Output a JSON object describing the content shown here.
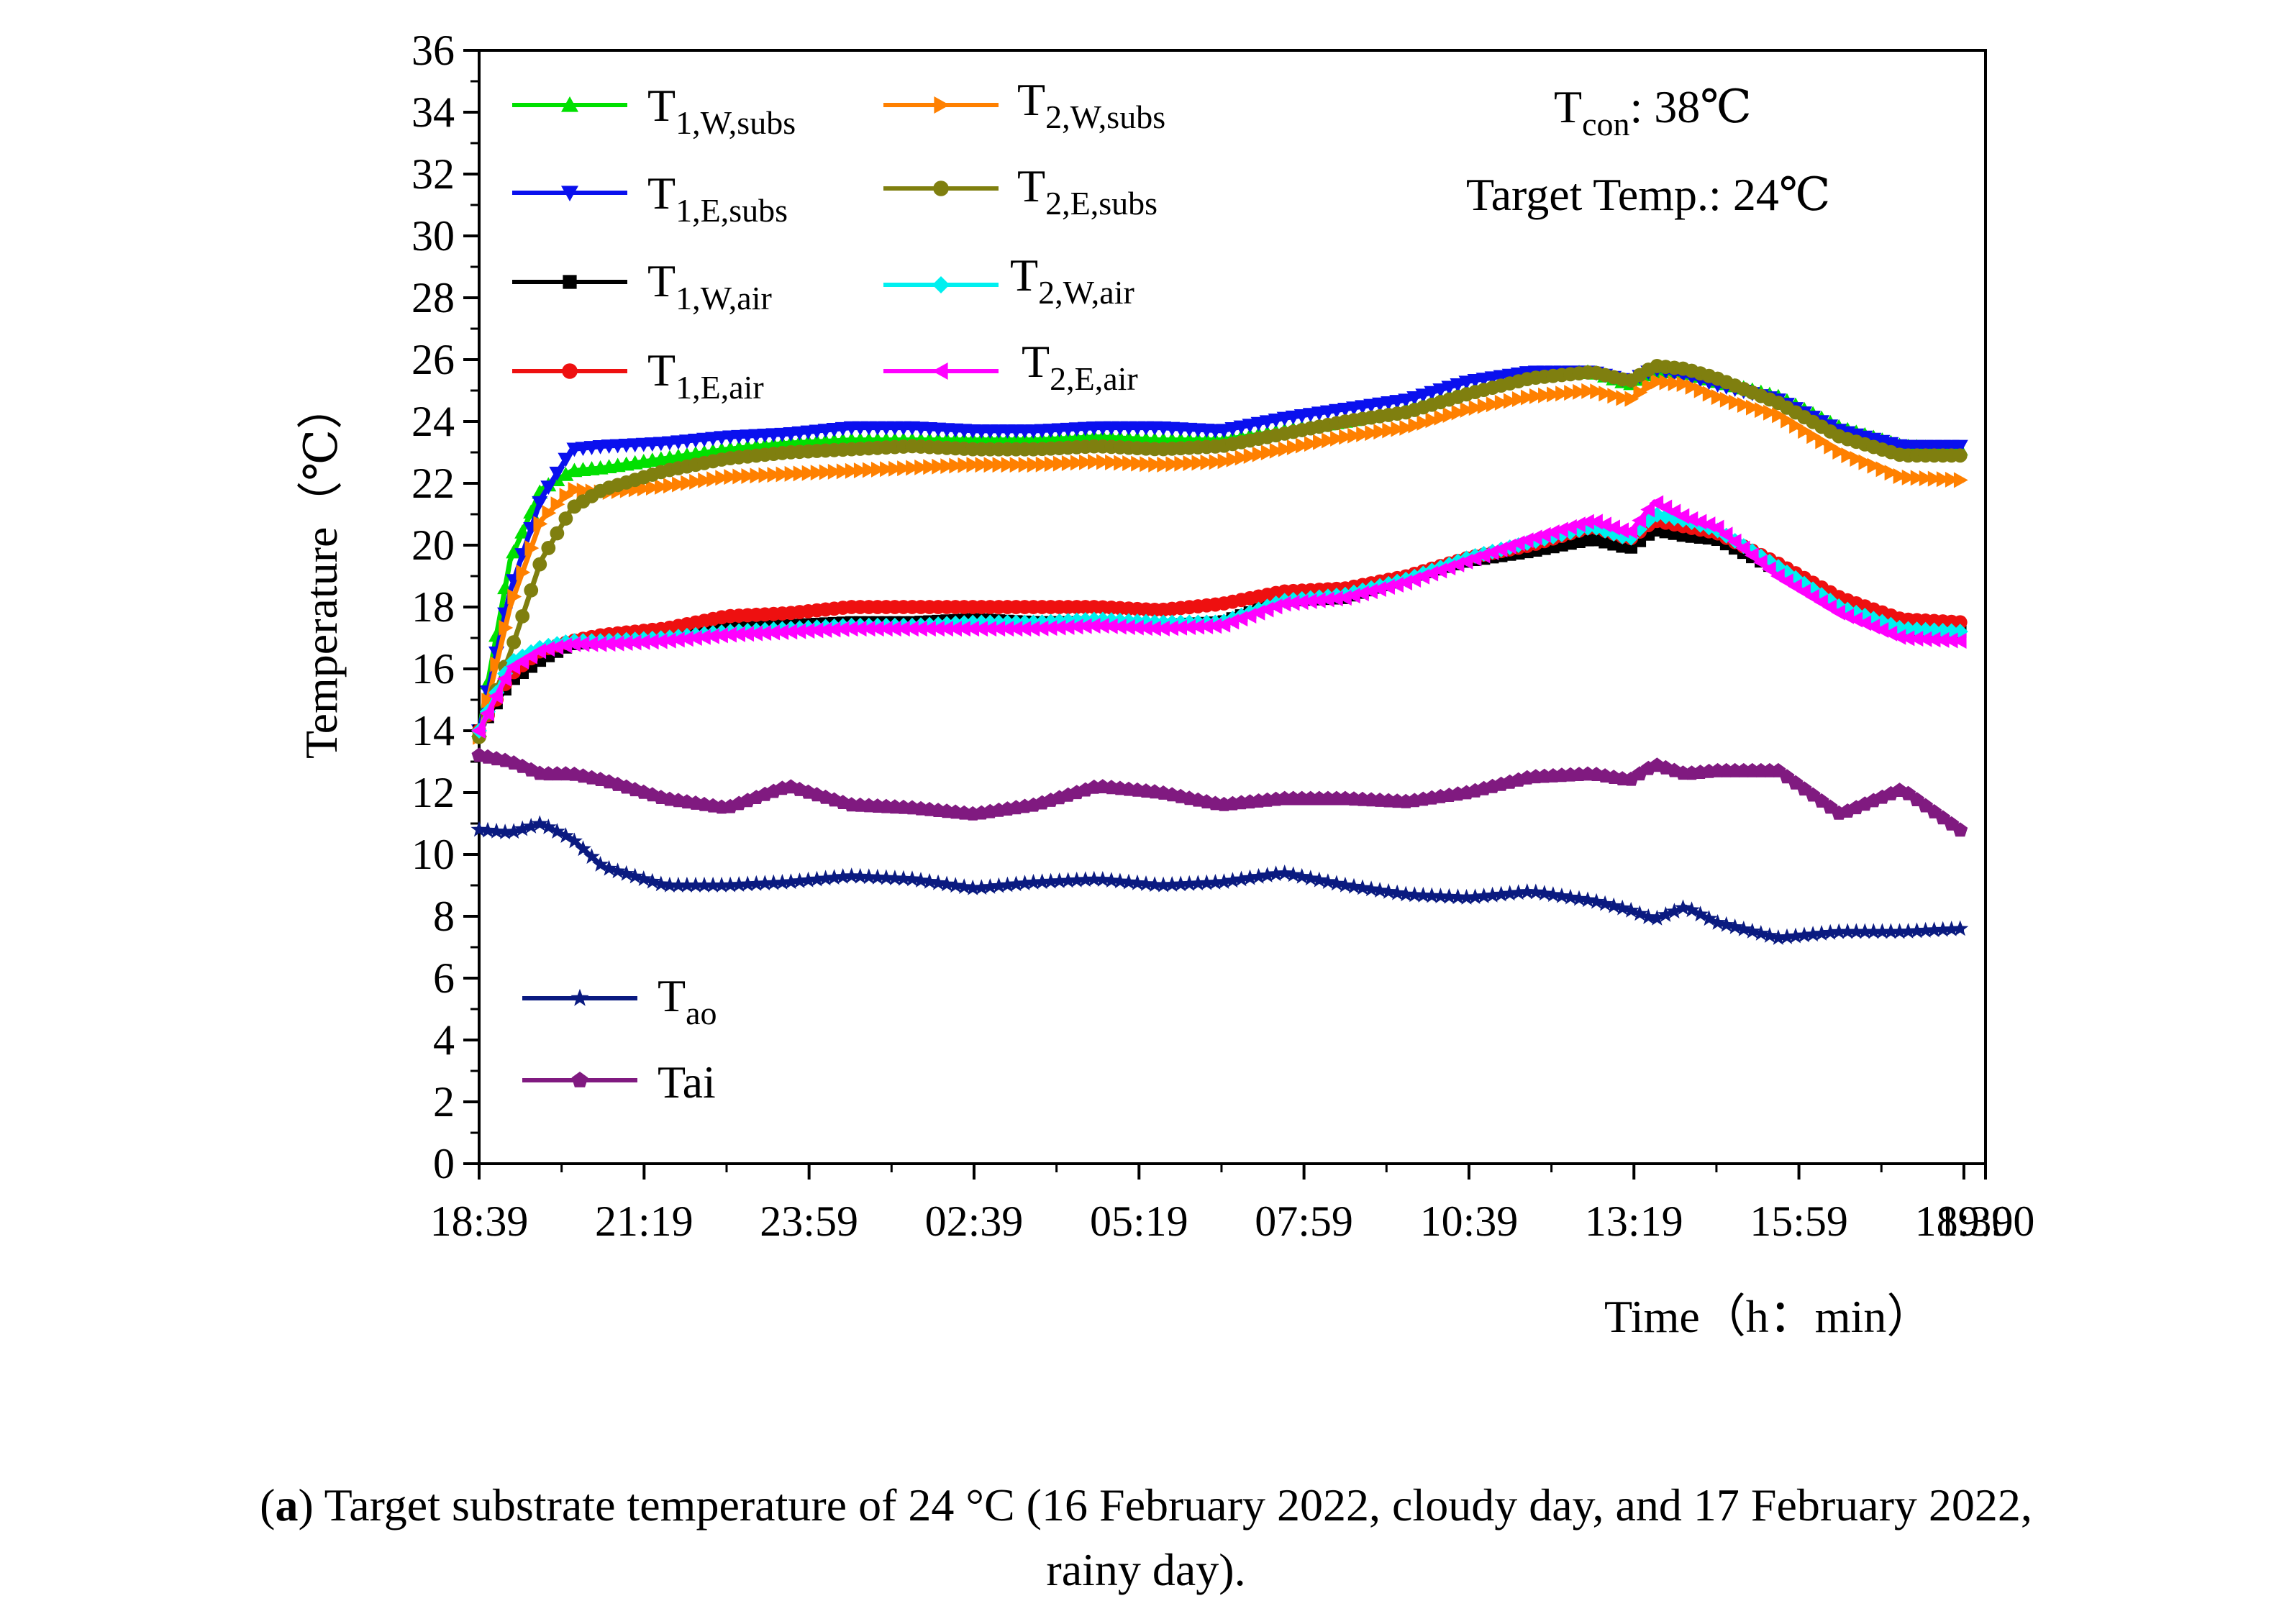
{
  "chart_data": {
    "type": "line",
    "title": "",
    "xlabel": "Time（h：min）",
    "ylabel": "Temperature（℃）",
    "ylim": [
      0,
      36
    ],
    "yticks": [
      0,
      2,
      4,
      6,
      8,
      10,
      12,
      14,
      16,
      18,
      20,
      22,
      24,
      26,
      28,
      30,
      32,
      34,
      36
    ],
    "xlim_hours": [
      0,
      24.35
    ],
    "xticks": [
      {
        "h": 0,
        "label": "18:39"
      },
      {
        "h": 2.6667,
        "label": "21:19"
      },
      {
        "h": 5.3333,
        "label": "23:59"
      },
      {
        "h": 8.0,
        "label": "02:39"
      },
      {
        "h": 10.6667,
        "label": "05:19"
      },
      {
        "h": 13.3333,
        "label": "07:59"
      },
      {
        "h": 16.0,
        "label": "10:39"
      },
      {
        "h": 18.6667,
        "label": "13:19"
      },
      {
        "h": 21.3333,
        "label": "15:59"
      },
      {
        "h": 24.0,
        "label": "18:39"
      },
      {
        "h": 24.35,
        "label": "19:00"
      }
    ],
    "annotations": [
      {
        "main": "T",
        "sub": "con",
        "rest": ": 38℃"
      },
      {
        "main": "Target Temp.: 24℃",
        "sub": "",
        "rest": ""
      }
    ],
    "x_hours": [
      0,
      0.5,
      1,
      1.5,
      2,
      3,
      4,
      5,
      6,
      7,
      8,
      9,
      10,
      11,
      12,
      13,
      14,
      15,
      16,
      17,
      18,
      18.6,
      19,
      19.5,
      20,
      21,
      22,
      23,
      24
    ],
    "series": [
      {
        "name_main": "T",
        "name_sub": "1,W,subs",
        "color": "#00e000",
        "marker": "triangle-up",
        "values": [
          14.0,
          19.5,
          21.8,
          22.4,
          22.5,
          22.8,
          23.1,
          23.3,
          23.4,
          23.4,
          23.4,
          23.4,
          23.5,
          23.4,
          23.4,
          23.7,
          24.0,
          24.4,
          25.0,
          25.5,
          25.6,
          25.2,
          25.6,
          25.6,
          25.3,
          24.8,
          23.8,
          23.2,
          23.1
        ]
      },
      {
        "name_main": "T",
        "name_sub": "1,E,subs",
        "color": "#0a10ee",
        "marker": "triangle-down",
        "values": [
          14.0,
          18.5,
          21.5,
          23.1,
          23.2,
          23.3,
          23.5,
          23.6,
          23.8,
          23.8,
          23.7,
          23.7,
          23.8,
          23.8,
          23.7,
          24.1,
          24.4,
          24.7,
          25.3,
          25.6,
          25.6,
          25.3,
          25.7,
          25.5,
          25.2,
          24.7,
          23.7,
          23.2,
          23.2
        ]
      },
      {
        "name_main": "T",
        "name_sub": "1,W,air",
        "color": "#000000",
        "marker": "square",
        "values": [
          14.0,
          15.6,
          16.3,
          16.8,
          16.9,
          17.0,
          17.3,
          17.4,
          17.5,
          17.5,
          17.6,
          17.5,
          17.5,
          17.4,
          17.5,
          18.2,
          18.3,
          18.9,
          19.5,
          19.8,
          20.2,
          19.9,
          20.5,
          20.3,
          20.2,
          19.2,
          18.2,
          17.3,
          17.2
        ]
      },
      {
        "name_main": "T",
        "name_sub": "1,E,air",
        "color": "#ee1010",
        "marker": "circle",
        "values": [
          14.0,
          15.8,
          16.6,
          16.9,
          17.1,
          17.3,
          17.7,
          17.8,
          18.0,
          18.0,
          18.0,
          18.0,
          18.0,
          17.9,
          18.1,
          18.5,
          18.6,
          19.0,
          19.6,
          20.0,
          20.6,
          20.2,
          20.8,
          20.6,
          20.4,
          19.4,
          18.3,
          17.6,
          17.5
        ]
      },
      {
        "name_main": "T",
        "name_sub": "2,W,subs",
        "color": "#ff8000",
        "marker": "triangle-right",
        "values": [
          13.8,
          18.0,
          20.8,
          21.8,
          21.7,
          21.9,
          22.2,
          22.3,
          22.4,
          22.5,
          22.6,
          22.6,
          22.7,
          22.6,
          22.7,
          23.1,
          23.5,
          23.8,
          24.4,
          24.8,
          25.0,
          24.7,
          25.3,
          25.2,
          24.8,
          24.2,
          23.0,
          22.2,
          22.1
        ]
      },
      {
        "name_main": "T",
        "name_sub": "2,E,subs",
        "color": "#7f7f0f",
        "marker": "circle",
        "values": [
          13.8,
          16.5,
          19.5,
          21.2,
          21.8,
          22.4,
          22.8,
          23.0,
          23.1,
          23.2,
          23.1,
          23.1,
          23.2,
          23.1,
          23.2,
          23.6,
          24.0,
          24.3,
          24.9,
          25.4,
          25.6,
          25.3,
          25.8,
          25.7,
          25.4,
          24.6,
          23.5,
          22.9,
          22.9
        ]
      },
      {
        "name_main": "T",
        "name_sub": "2,W,air",
        "color": "#00f0f0",
        "marker": "diamond",
        "values": [
          14.0,
          16.2,
          16.7,
          16.9,
          16.9,
          17.0,
          17.2,
          17.3,
          17.4,
          17.4,
          17.5,
          17.5,
          17.6,
          17.5,
          17.5,
          18.2,
          18.4,
          18.9,
          19.6,
          20.1,
          20.6,
          20.2,
          21.0,
          20.8,
          20.5,
          19.3,
          18.0,
          17.3,
          17.2
        ]
      },
      {
        "name_main": "T",
        "name_sub": "2,E,air",
        "color": "#ff00ff",
        "marker": "triangle-left",
        "values": [
          14.0,
          16.0,
          16.6,
          16.8,
          16.8,
          16.9,
          17.1,
          17.2,
          17.3,
          17.3,
          17.3,
          17.3,
          17.4,
          17.3,
          17.4,
          18.1,
          18.3,
          18.8,
          19.5,
          20.2,
          20.8,
          20.4,
          21.4,
          20.9,
          20.6,
          19.0,
          17.8,
          17.0,
          16.9
        ]
      },
      {
        "name_main": "T",
        "name_sub": "ao",
        "color": "#0a1a80",
        "marker": "star",
        "values": [
          10.8,
          10.7,
          11.0,
          10.5,
          9.6,
          9.0,
          9.0,
          9.1,
          9.3,
          9.2,
          8.9,
          9.1,
          9.2,
          9.0,
          9.1,
          9.4,
          9.0,
          8.7,
          8.6,
          8.8,
          8.5,
          8.2,
          7.9,
          8.3,
          7.8,
          7.3,
          7.5,
          7.5,
          7.6
        ]
      },
      {
        "name_main": "Tai",
        "name_sub": "",
        "color": "#801a80",
        "marker": "pentagon",
        "values": [
          13.2,
          13.0,
          12.6,
          12.6,
          12.4,
          11.8,
          11.5,
          12.2,
          11.6,
          11.5,
          11.3,
          11.6,
          12.2,
          12.0,
          11.6,
          11.8,
          11.8,
          11.7,
          12.0,
          12.5,
          12.6,
          12.4,
          12.9,
          12.6,
          12.7,
          12.7,
          11.3,
          12.1,
          10.7
        ]
      }
    ]
  },
  "caption": {
    "label": "a",
    "line1_before": "(",
    "line1_after": ") Target substrate temperature of 24 °C (16 February 2022, cloudy day, and 17 February 2022,",
    "line2": "rainy day)."
  }
}
